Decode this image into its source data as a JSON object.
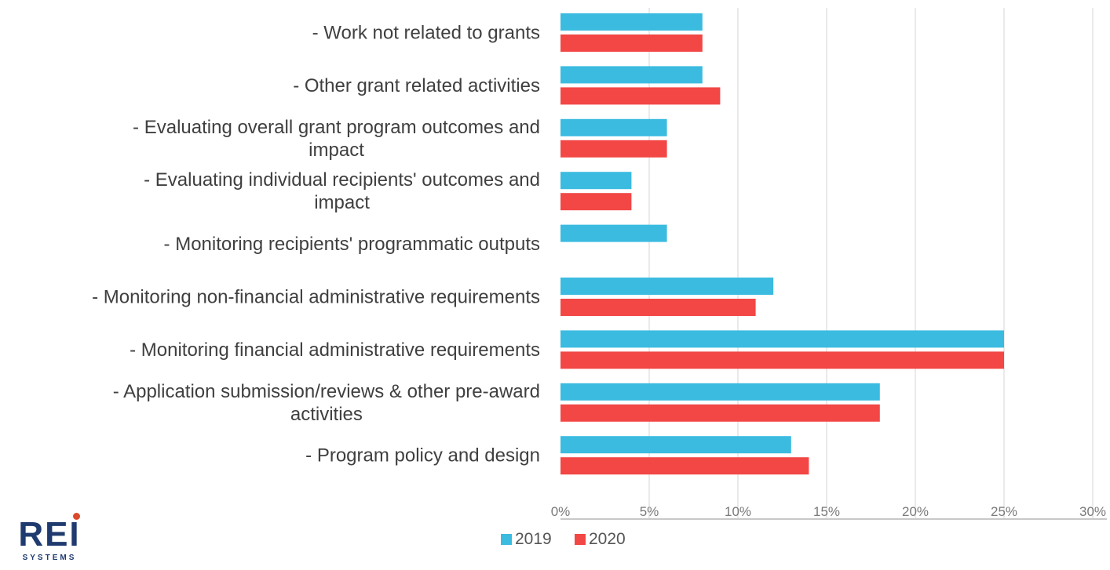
{
  "chart_data": {
    "type": "bar",
    "orientation": "horizontal",
    "categories": [
      [
        "- Work not related to grants"
      ],
      [
        "- Other grant related activities"
      ],
      [
        "- Evaluating overall grant program outcomes and",
        "impact"
      ],
      [
        "- Evaluating  individual recipients' outcomes and",
        "impact"
      ],
      [
        "- Monitoring recipients' programmatic outputs"
      ],
      [
        "- Monitoring non-financial administrative requirements"
      ],
      [
        "- Monitoring financial administrative requirements"
      ],
      [
        "- Application submission/reviews & other pre-award",
        "activities"
      ],
      [
        "- Program policy and design"
      ]
    ],
    "series": [
      {
        "name": "2019",
        "color": "#3bbbe0",
        "values": [
          8,
          8,
          6,
          4,
          6,
          12,
          25,
          18,
          13
        ]
      },
      {
        "name": "2020",
        "color": "#f24745",
        "values": [
          8,
          9,
          6,
          4,
          null,
          11,
          25,
          18,
          14
        ]
      }
    ],
    "xlim": [
      0,
      30
    ],
    "xticks": [
      "0%",
      "5%",
      "10%",
      "15%",
      "20%",
      "25%",
      "30%"
    ],
    "grid": true,
    "legend": "bottom-center"
  },
  "logo": {
    "text": "REI",
    "subtext": "SYSTEMS"
  }
}
